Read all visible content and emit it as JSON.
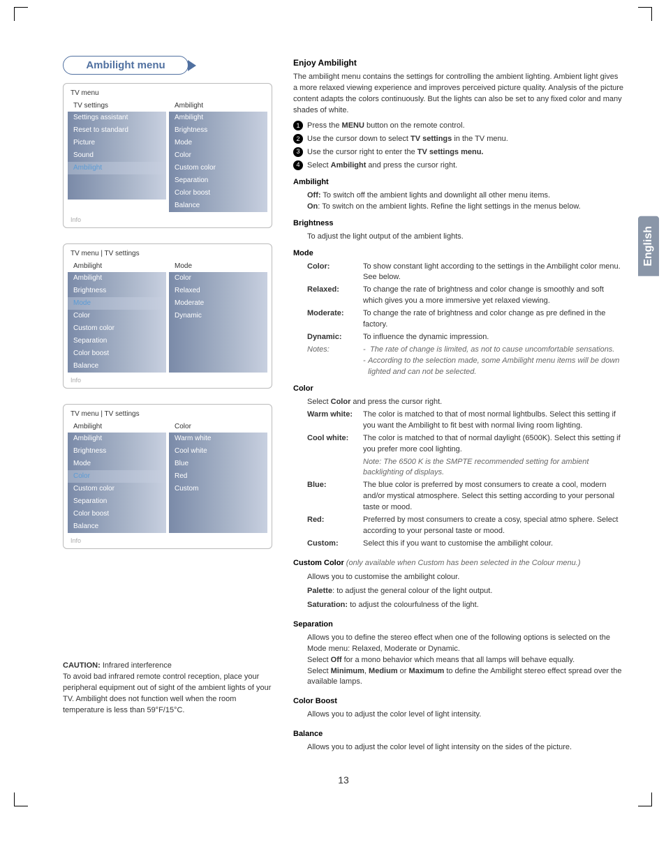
{
  "page_number": "13",
  "side_tab": "English",
  "title_bubble": "Ambilight menu",
  "colors": {
    "accent": "#5070a0",
    "menu_gradient_from": "#7a8aa8",
    "menu_gradient_to": "#c8d0e0",
    "selected_text": "#5b9bd5",
    "muted": "#aaaaaa",
    "side_tab_bg": "#8a96a8"
  },
  "menu1": {
    "title": "TV menu",
    "head_left": "TV settings",
    "head_right": "Ambilight",
    "left": [
      "Settings assistant",
      "Reset to standard",
      "Picture",
      "Sound",
      "Ambilight",
      "",
      ""
    ],
    "left_selected_index": 4,
    "right": [
      "Ambilight",
      "Brightness",
      "Mode",
      "Color",
      "Custom color",
      "Separation",
      "Color boost",
      "Balance"
    ],
    "info": "Info"
  },
  "menu2": {
    "title": "TV menu | TV settings",
    "head_left": "Ambilight",
    "head_right": "Mode",
    "left": [
      "Ambilight",
      "Brightness",
      "Mode",
      "Color",
      "Custom color",
      "Separation",
      "Color boost",
      "Balance"
    ],
    "left_selected_index": 2,
    "right": [
      "Color",
      "Relaxed",
      "Moderate",
      "Dynamic",
      "",
      "",
      "",
      ""
    ],
    "info": "Info"
  },
  "menu3": {
    "title": "TV menu | TV settings",
    "head_left": "Ambilight",
    "head_right": "Color",
    "left": [
      "Ambilight",
      "Brightness",
      "Mode",
      "Color",
      "Custom color",
      "Separation",
      "Color boost",
      "Balance"
    ],
    "left_selected_index": 3,
    "right": [
      "Warm white",
      "Cool white",
      "Blue",
      "Red",
      "Custom",
      "",
      "",
      ""
    ],
    "info": "Info"
  },
  "caution": {
    "heading": "CAUTION:",
    "heading_rest": " Infrared interference",
    "body": "To avoid bad infrared remote control reception, place your peripheral equipment out of sight of the ambient lights of your TV. Ambilight does not  function well when the room temperature is less than 59°F/15°C."
  },
  "content": {
    "h1": "Enjoy Ambilight",
    "intro": "The ambilight menu contains the settings for controlling the ambient lighting. Ambient light gives a more relaxed viewing experience and improves perceived picture quality. Analysis of the picture content adapts the colors continuously. But the lights can also be set to any fixed color and many shades of white.",
    "steps": [
      {
        "n": "1",
        "pre": "Press the ",
        "b": "MENU",
        "post": " button on the remote control."
      },
      {
        "n": "2",
        "pre": "Use the cursor down to select ",
        "b": "TV settings",
        "post": " in the TV menu."
      },
      {
        "n": "3",
        "pre": "Use the cursor right to enter the ",
        "b": "TV settings menu.",
        "post": ""
      },
      {
        "n": "4",
        "pre": "Select ",
        "b": "Ambilight",
        "post": " and press the cursor right."
      }
    ],
    "ambilight": {
      "heading": "Ambilight",
      "off_label": "Off:",
      "off_text": " To switch off the ambient lights and downlight all other menu items.",
      "on_label": "On",
      "on_text": ": To switch on the ambient lights. Refine the light settings in the menus below."
    },
    "brightness": {
      "heading": "Brightness",
      "text": "To adjust the light output of the ambient lights."
    },
    "mode": {
      "heading": "Mode",
      "rows": [
        {
          "label": "Color:",
          "text": "To show constant light according to the settings in the Ambilight color menu. See below."
        },
        {
          "label": "Relaxed:",
          "text": "To change the rate of brightness and color change is smoothly and soft which gives you a more immersive yet relaxed viewing."
        },
        {
          "label": "Moderate:",
          "text": "To change the rate of brightness and color change as pre defined in the factory."
        },
        {
          "label": "Dynamic:",
          "text": "To influence the dynamic impression."
        }
      ],
      "notes_label": "Notes:",
      "notes": [
        "The rate of change is limited, as not to cause uncomfortable sensations.",
        "According to the selection made, some Ambilight menu items will be down lighted and can not be selected."
      ]
    },
    "color": {
      "heading": "Color",
      "intro_pre": "Select ",
      "intro_b": "Color",
      "intro_post": " and press the cursor right.",
      "rows": [
        {
          "label": "Warm white",
          "suffix": ":",
          "text": "The color is matched to that of most normal lightbulbs. Select this setting if you want the Ambilight to fit best with normal living room lighting."
        },
        {
          "label": "Cool white",
          "suffix": ":",
          "text": "The color is matched to that of normal daylight (6500K). Select this setting if you prefer more cool lighting."
        }
      ],
      "note": "Note: The 6500 K is the SMPTE recommended setting for ambient backlighting of displays.",
      "rows2": [
        {
          "label": "Blue:",
          "text": "The blue color is preferred by most consumers to create a cool, modern and/or mystical atmosphere. Select this setting according to your personal taste or mood."
        },
        {
          "label": "Red:",
          "text": "Preferred by most consumers to create a cosy, special atmo sphere. Select according to your personal taste or mood."
        },
        {
          "label": "Custom:",
          "text": "Select this if you want to customise the ambilight colour."
        }
      ]
    },
    "custom_color": {
      "heading": "Custom Color",
      "note": " (only available when Custom has been selected in the Colour menu.)",
      "line1": "Allows you to customise the ambilight colour.",
      "palette_b": "Palette",
      "palette_rest": ": to adjust the general colour of the light output.",
      "sat_b": "Saturation:",
      "sat_rest": " to adjust the colourfulness of the light."
    },
    "separation": {
      "heading": "Separation",
      "l1": "Allows you to define the stereo effect when one of the following options is selected on the Mode menu: Relaxed, Moderate or Dynamic.",
      "l2_pre": "Select ",
      "l2_b1": "Off",
      "l2_mid": " for a mono behavior which means that all lamps will behave equally.",
      "l3_pre": "Select ",
      "l3_b1": "Minimum",
      "l3_c1": ", ",
      "l3_b2": "Medium",
      "l3_c2": " or ",
      "l3_b3": "Maximum",
      "l3_post": " to define the Ambilight stereo effect spread over the available lamps."
    },
    "color_boost": {
      "heading": "Color Boost",
      "text": "Allows you to adjust the color level of light intensity."
    },
    "balance": {
      "heading": "Balance",
      "text": "Allows you to adjust the color level of light intensity on the sides of the picture."
    }
  }
}
